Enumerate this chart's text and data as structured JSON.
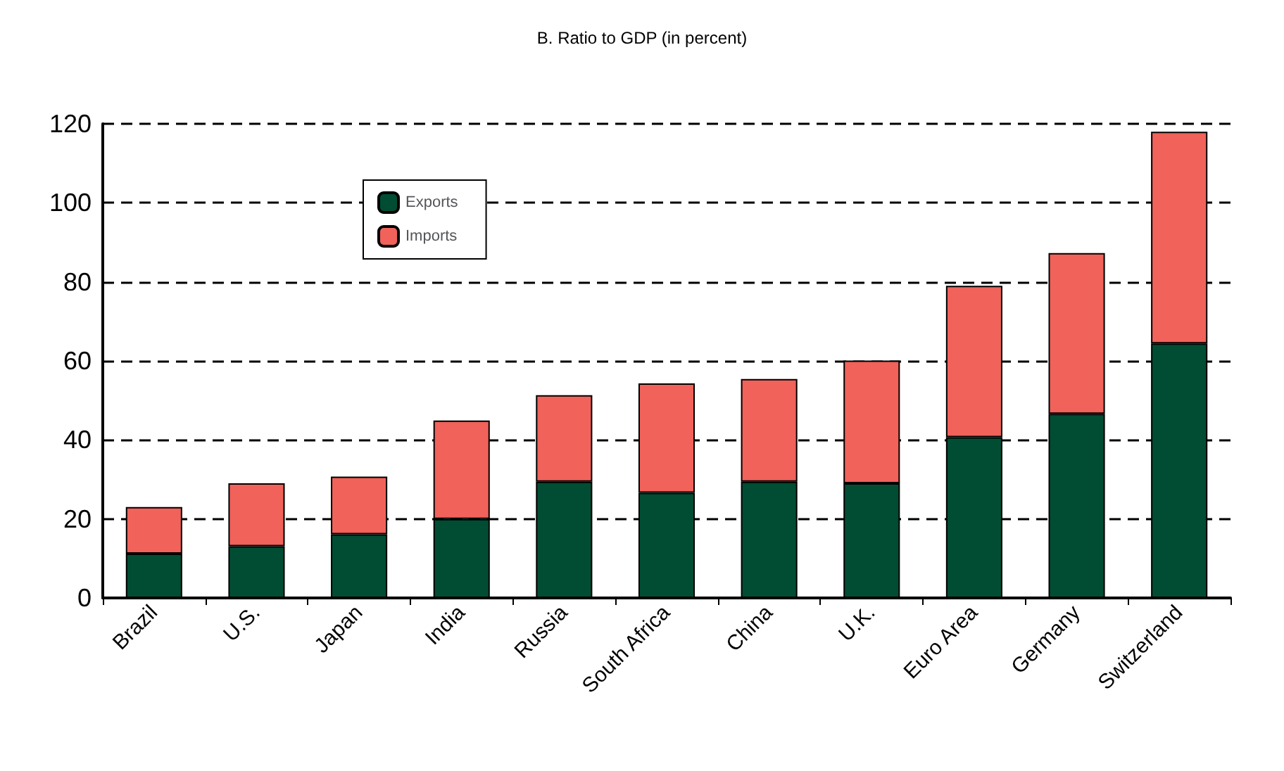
{
  "chart_data": {
    "type": "bar",
    "title": "B. Ratio to GDP (in percent)",
    "categories": [
      "Brazil",
      "U.S.",
      "Japan",
      "India",
      "Russia",
      "South Africa",
      "China",
      "U.K.",
      "Euro Area",
      "Germany",
      "Switzerland"
    ],
    "series": [
      {
        "name": "Exports",
        "color": "#004d33",
        "values": [
          11.2,
          13.1,
          16.1,
          20.0,
          29.4,
          26.6,
          29.4,
          29.0,
          40.7,
          46.6,
          64.4
        ]
      },
      {
        "name": "Imports",
        "color": "#f0625a",
        "values": [
          11.8,
          15.9,
          14.6,
          24.9,
          21.9,
          27.7,
          26.0,
          31.1,
          38.3,
          40.7,
          53.6
        ]
      }
    ],
    "stacked": true,
    "ylim": [
      0,
      120
    ],
    "yticks": [
      0,
      20,
      40,
      60,
      80,
      100,
      120
    ],
    "grid": "y",
    "legend": "top left"
  }
}
